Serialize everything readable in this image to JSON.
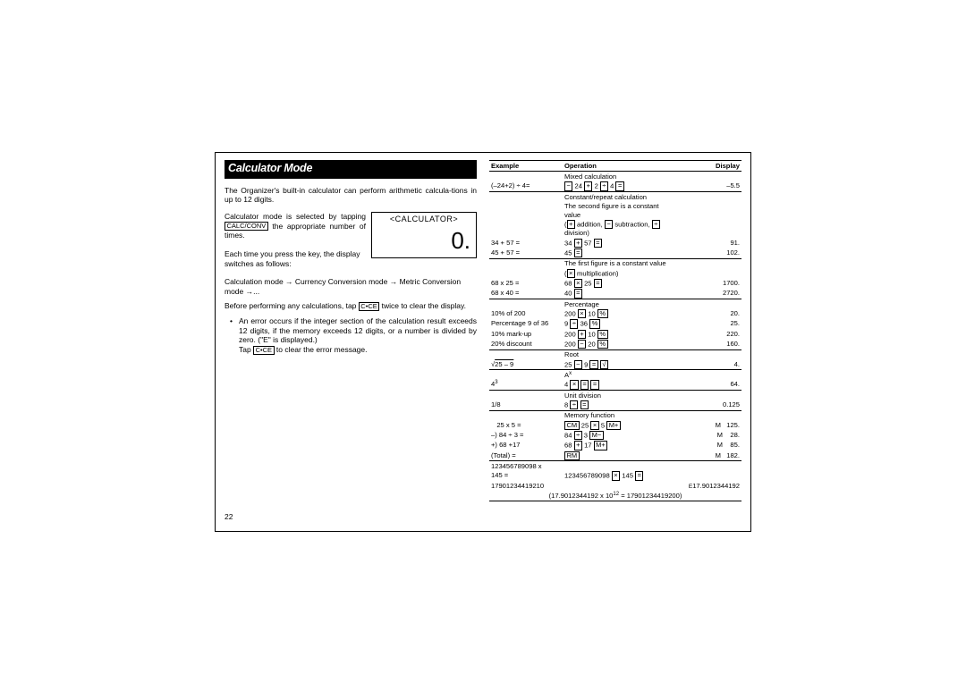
{
  "page_number": "22",
  "title": "Calculator Mode",
  "lcd": {
    "header": "<CALCULATOR>",
    "value": "0."
  },
  "left": {
    "p1a": "The Organizer's built-in calculator can perform arithmetic calcula-",
    "p1b": "tions in up to 12 digits.",
    "p2a": "Calculator mode is selected by tapping ",
    "p2key": "CALC/CONV",
    "p2b": " the appropriate number of times.",
    "p3": "Each time you press the key, the display switches as follows:",
    "p4": "Calculation mode → Currency Conversion mode → Metric Conversion mode →...",
    "p5a": "Before performing any calculations, tap ",
    "p5key": "C•CE",
    "p5b": " twice to clear the display.",
    "bul1": "An error occurs if the integer section of the calculation result exceeds 12 digits, if the memory exceeds 12 digits, or a number is divided by zero. (\"E\" is displayed.)",
    "bul2a": "Tap ",
    "bul2key": "C•CE",
    "bul2b": " to clear the error message."
  },
  "headers": {
    "ex": "Example",
    "op": "Operation",
    "disp": "Display"
  },
  "rows": [
    {
      "type": "head",
      "op": "Mixed calculation"
    },
    {
      "ex": "(–24+2) ÷ 4=",
      "opHtml": "<span class='kbox'>−</span> 24 <span class='kbox'>+</span> 2 <span class='kbox'>÷</span> 4 <span class='kbox'>=</span>",
      "disp": "–5.5"
    },
    {
      "type": "rule"
    },
    {
      "type": "head",
      "op": "Constant/repeat calculation"
    },
    {
      "type": "note",
      "op": "The second figure is a constant value"
    },
    {
      "type": "note",
      "opHtml": "(<span class='kbox'>+</span> addition, <span class='kbox'>−</span> subtraction, <span class='kbox'>÷</span> division)"
    },
    {
      "ex": "34 + 57 =",
      "opHtml": "34 <span class='kbox'>+</span> 57 <span class='kbox'>=</span>",
      "disp": "91."
    },
    {
      "ex": "45 + 57 =",
      "opHtml": "45 <span class='kbox'>=</span>",
      "disp": "102."
    },
    {
      "type": "rule"
    },
    {
      "type": "note",
      "op": "The first figure is a constant value"
    },
    {
      "type": "note",
      "opHtml": "(<span class='kbox'>×</span> multiplication)"
    },
    {
      "ex": "68 x 25 =",
      "opHtml": "68 <span class='kbox'>×</span> 25 <span class='kbox'>=</span>",
      "disp": "1700."
    },
    {
      "ex": "68 x 40 =",
      "opHtml": "40 <span class='kbox'>=</span>",
      "disp": "2720."
    },
    {
      "type": "rule"
    },
    {
      "type": "head",
      "op": "Percentage"
    },
    {
      "ex": "10% of 200",
      "opHtml": "200 <span class='kbox'>×</span> 10 <span class='kbox'>%</span>",
      "disp": "20."
    },
    {
      "ex": "Percentage 9 of 36",
      "opHtml": "9 <span class='kbox'>÷</span> 36 <span class='kbox'>%</span>",
      "disp": "25."
    },
    {
      "ex": "10% mark-up",
      "opHtml": "200 <span class='kbox'>+</span> 10 <span class='kbox'>%</span>",
      "disp": "220."
    },
    {
      "ex": "20% discount",
      "opHtml": "200 <span class='kbox'>−</span> 20 <span class='kbox'>%</span>",
      "disp": "160."
    },
    {
      "type": "rule"
    },
    {
      "type": "head",
      "op": "Root"
    },
    {
      "exHtml": "√<span style='text-decoration:overline'>25 – 9</span>",
      "opHtml": "25 <span class='kbox'>−</span> 9 <span class='kbox'>=</span> <span class='kbox'>√</span>",
      "disp": "4."
    },
    {
      "type": "rule"
    },
    {
      "type": "head",
      "opHtml": "A<span class='sup'>x</span>"
    },
    {
      "exHtml": "4<span class='sup'>3</span>",
      "opHtml": "4 <span class='kbox'>×</span> <span class='kbox'>=</span> <span class='kbox'>=</span>",
      "disp": "64."
    },
    {
      "type": "rule"
    },
    {
      "type": "head",
      "op": "Unit division"
    },
    {
      "ex": "1/8",
      "opHtml": "8 <span class='kbox'>÷</span> <span class='kbox'>=</span>",
      "disp": "0.125"
    },
    {
      "type": "rule"
    },
    {
      "type": "head",
      "op": "Memory function"
    },
    {
      "ex": "   25 x 5 =",
      "opHtml": "<span class='kbox'>CM</span> 25 <span class='kbox'>×</span> 5 <span class='kbox'>M+</span>",
      "disp": "M   125."
    },
    {
      "ex": "–) 84 ÷ 3 =",
      "opHtml": "84 <span class='kbox'>÷</span> 3 <span class='kbox'>M−</span>",
      "disp": "M    28."
    },
    {
      "ex": "+) 68 +17",
      "opHtml": "68 <span class='kbox'>+</span> 17 <span class='kbox'>M+</span>",
      "disp": "M    85."
    },
    {
      "ex": "(Total) =",
      "opHtml": "<span class='kbox'>RM</span>",
      "disp": "M   182."
    },
    {
      "type": "rule"
    },
    {
      "ex": "123456789098 x",
      "op": "",
      "disp": ""
    },
    {
      "ex": "145 =",
      "opHtml": "123456789098 <span class='kbox'>×</span> 145 <span class='kbox'>=</span>",
      "disp": ""
    },
    {
      "ex": "17901234419210",
      "op": "",
      "dispHtml": "<span style='font-size:6.5px'>E</span>17.9012344192"
    },
    {
      "type": "footer",
      "opHtml": "(17.9012344192 x 10<span class='sup'>12</span> = 17901234419200)"
    },
    {
      "type": "rule"
    }
  ]
}
